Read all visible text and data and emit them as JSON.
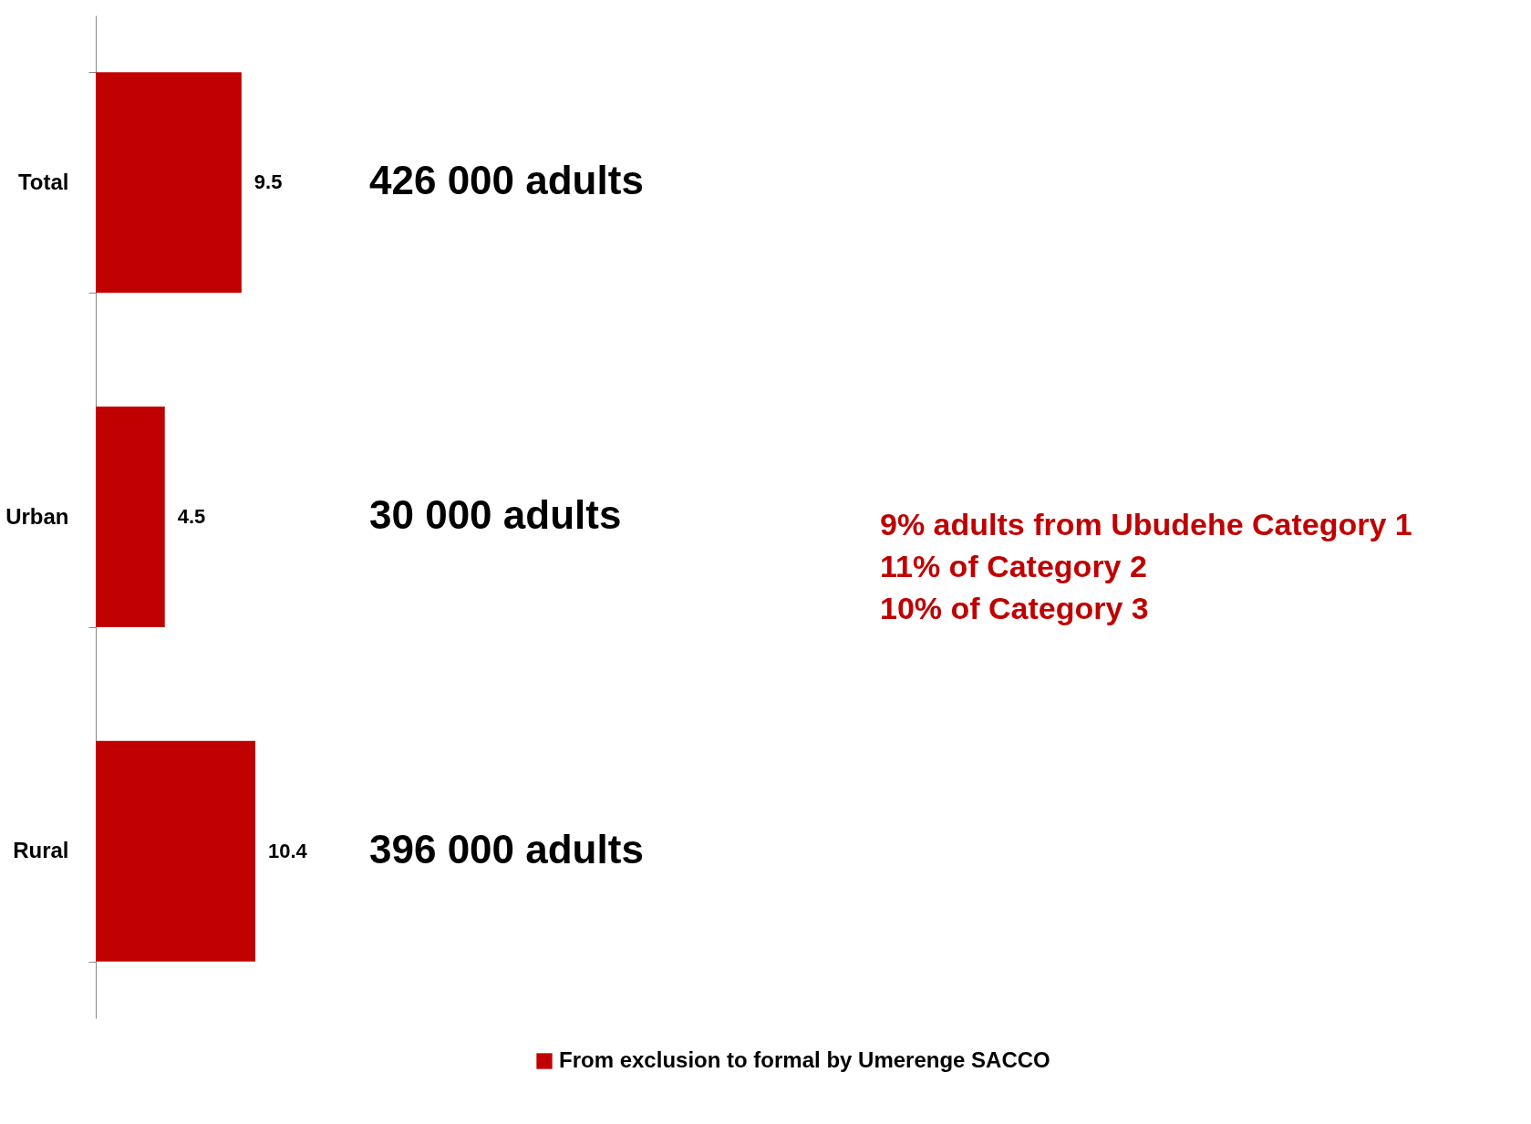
{
  "chart_data": {
    "type": "bar",
    "orientation": "horizontal",
    "categories": [
      "Total",
      "Urban",
      "Rural"
    ],
    "series": [
      {
        "name": "From exclusion to formal by Umerenge SACCO",
        "color": "#c00000",
        "values": [
          9.5,
          4.5,
          10.4
        ]
      }
    ],
    "data_labels": true,
    "legend": "bottom",
    "grid": false,
    "tick_labels": "y",
    "annotations": [
      "426 000 adults",
      "30 000 adults",
      "396 000 adults",
      "9% adults from Ubudehe Category 1",
      "11% of Category 2",
      "10% of Category 3"
    ]
  }
}
